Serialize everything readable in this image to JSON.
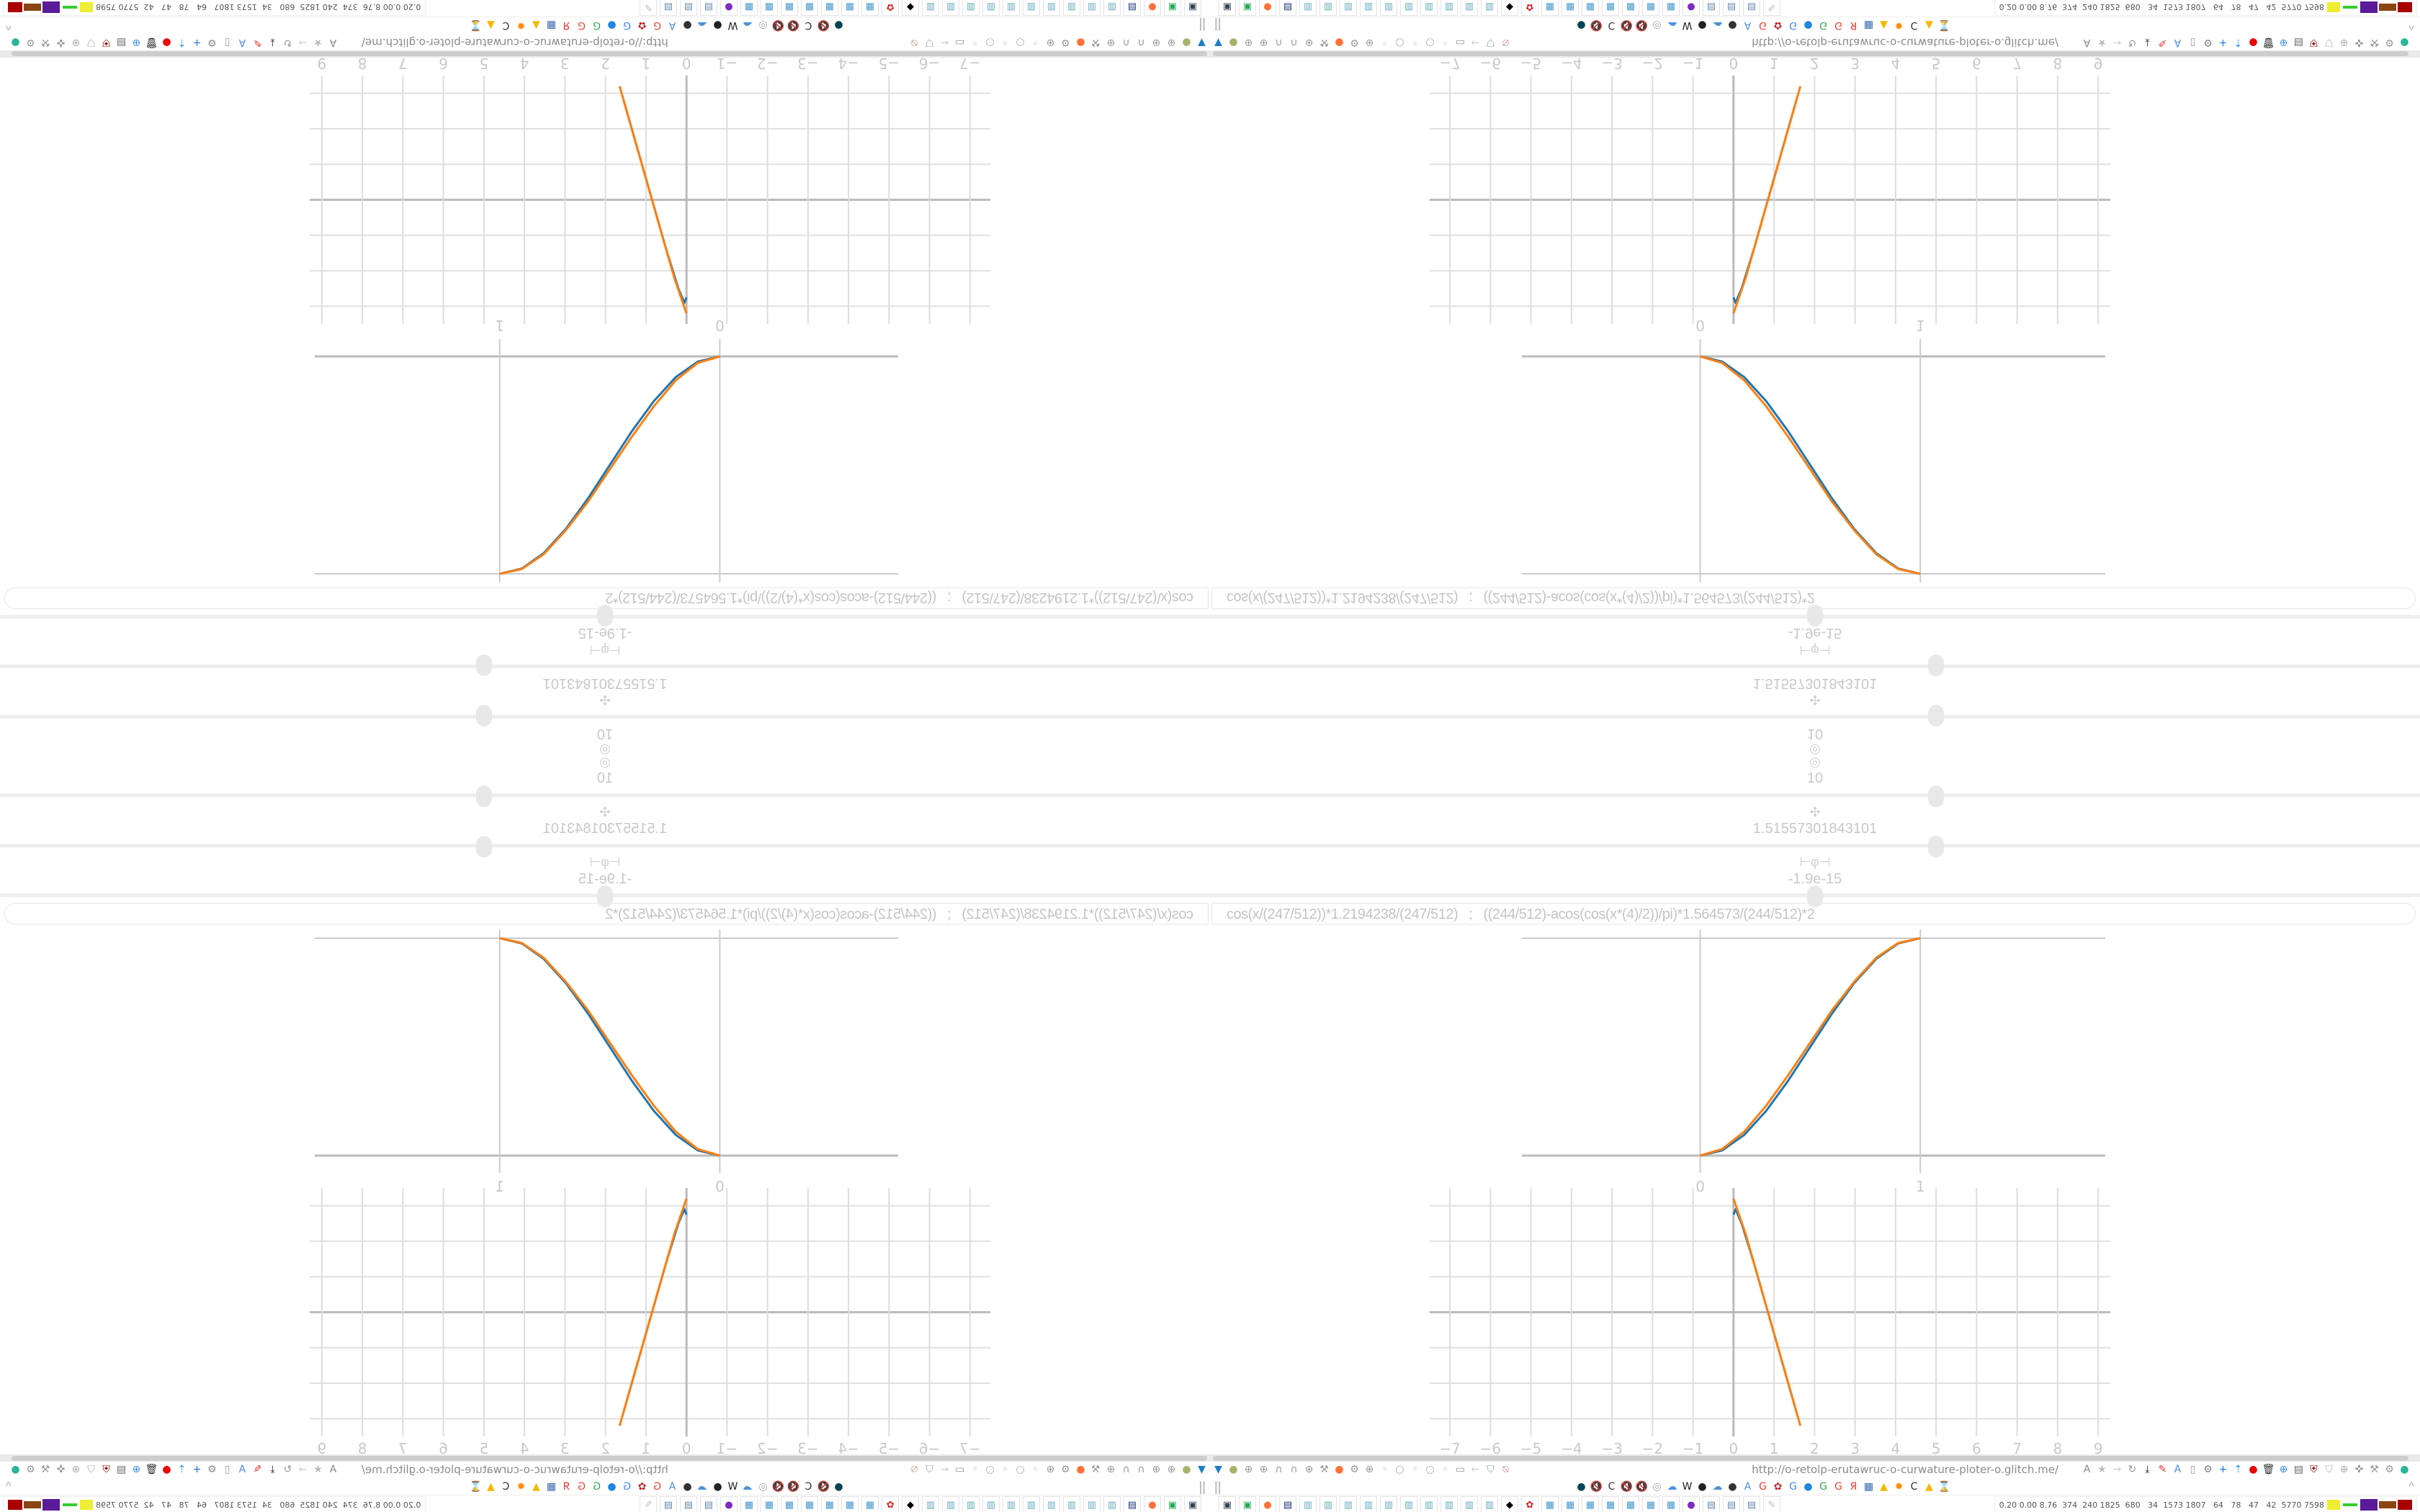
{
  "browser": {
    "url": "http://o-retolp-erutawruc-o-curwature-ploter-o.glitch.me/",
    "pause_label": "||",
    "collapse_label": "^",
    "system_stats": "0.20 0.00 8.76  374  240 1825  680   34  1573 1807   64   78   47   42  5770 7598"
  },
  "controls": {
    "top_value": "10",
    "top_icon": "target-icon",
    "slider1": {
      "icon": "move-icon",
      "value": "1.51557301843101",
      "position": 0.6
    },
    "slider2": {
      "icon": "phi-icon",
      "value": "-1.9e-15",
      "position": 0.5
    },
    "slider0": {
      "position": 0.6
    },
    "formula": "cos(x/(247/512))*1.2194238/(247/512)   ;   ((244/512)-acos(cos(x*(4)/2))/pi)*1.564573/(244/512)*2"
  },
  "colors": {
    "series_blue": "#1f77b4",
    "series_orange": "#ff7f0e",
    "grid": "#cccccc",
    "label": "#c8c8c8"
  },
  "chart_data": [
    {
      "type": "line",
      "x_tick_labels": [
        "0",
        "1"
      ],
      "xlim": [
        -0.81,
        1.84
      ],
      "ylim": [
        0,
        1
      ],
      "grid": true,
      "series": [
        {
          "color": "#1f77b4",
          "x": [
            0,
            0.1,
            0.2,
            0.3,
            0.4,
            0.5,
            0.6,
            0.7,
            0.8,
            0.9,
            1
          ],
          "y": [
            0,
            0.024,
            0.095,
            0.206,
            0.345,
            0.5,
            0.655,
            0.794,
            0.905,
            0.976,
            1
          ]
        },
        {
          "color": "#ff7f0e",
          "x": [
            0,
            0.1,
            0.2,
            0.3,
            0.4,
            0.5,
            0.6,
            0.7,
            0.8,
            0.9,
            1
          ],
          "y": [
            0,
            0.03,
            0.11,
            0.23,
            0.37,
            0.52,
            0.67,
            0.8,
            0.91,
            0.978,
            1
          ]
        }
      ]
    },
    {
      "type": "line",
      "x_tick_labels": [
        "−7",
        "−6",
        "−5",
        "−4",
        "−3",
        "−2",
        "−1",
        "0",
        "1",
        "2",
        "3",
        "4",
        "5",
        "6",
        "7",
        "8",
        "9"
      ],
      "xlim": [
        -7.5,
        9.3
      ],
      "ylim": [
        -3.5,
        3.5
      ],
      "grid": true,
      "series": [
        {
          "color": "#1f77b4",
          "x": [
            0.0,
            0.05,
            0.2,
            0.5,
            0.8,
            1.1,
            1.4,
            1.55
          ],
          "y": [
            2.75,
            2.9,
            2.5,
            1.4,
            0.2,
            -1.0,
            -2.2,
            -2.8
          ]
        },
        {
          "color": "#ff7f0e",
          "x": [
            0.0,
            0.3,
            0.6,
            0.9,
            1.2,
            1.5,
            1.65
          ],
          "y": [
            3.2,
            2.2,
            1.0,
            -0.2,
            -1.4,
            -2.6,
            -3.2
          ]
        }
      ]
    }
  ],
  "toolbar": {
    "row1_left": [
      {
        "name": "filter-icon",
        "g": "▼",
        "c": "#1a7fc1"
      },
      {
        "name": "extension-green-icon",
        "g": "●",
        "c": "#a7b26b"
      },
      {
        "name": "globe-icon",
        "g": "⊕",
        "c": "#999"
      },
      {
        "name": "globe-icon",
        "g": "⊕",
        "c": "#999"
      },
      {
        "name": "headphones-icon",
        "g": "∩",
        "c": "#999"
      },
      {
        "name": "headphones-icon",
        "g": "∩",
        "c": "#999"
      },
      {
        "name": "globe-icon",
        "g": "⊕",
        "c": "#999"
      },
      {
        "name": "wrench-icon",
        "g": "⚒",
        "c": "#999"
      },
      {
        "name": "firefox-icon",
        "g": "●",
        "c": "#ff7139"
      },
      {
        "name": "gear-icon",
        "g": "⚙",
        "c": "#999"
      },
      {
        "name": "globe-icon",
        "g": "⊕",
        "c": "#999"
      },
      {
        "name": "dot-icon",
        "g": "◦",
        "c": "#aaa"
      },
      {
        "name": "circle-icon",
        "g": "○",
        "c": "#aaa"
      },
      {
        "name": "dot-icon",
        "g": "◦",
        "c": "#aaa"
      },
      {
        "name": "circle-icon",
        "g": "○",
        "c": "#aaa"
      },
      {
        "name": "dot-icon",
        "g": "◦",
        "c": "#aaa"
      },
      {
        "name": "folder-icon",
        "g": "▭",
        "c": "#999"
      },
      {
        "name": "back-icon",
        "g": "←",
        "c": "#ccc"
      },
      {
        "name": "shield-icon",
        "g": "⛉",
        "c": "#999"
      },
      {
        "name": "user-blocked-icon",
        "g": "⍉",
        "c": "#c77"
      }
    ],
    "row1_right": [
      {
        "name": "translate-icon",
        "g": "A",
        "c": "#888"
      },
      {
        "name": "star-icon",
        "g": "★",
        "c": "#bbb"
      },
      {
        "name": "forward-icon",
        "g": "→",
        "c": "#ccc"
      },
      {
        "name": "reload-icon",
        "g": "↻",
        "c": "#999"
      },
      {
        "name": "download-icon",
        "g": "⤓",
        "c": "#222"
      },
      {
        "name": "pen-icon",
        "g": "✎",
        "c": "#d33"
      },
      {
        "name": "translate-icon",
        "g": "A",
        "c": "#4a8fe0"
      },
      {
        "name": "mouse-icon",
        "g": "▯",
        "c": "#999"
      },
      {
        "name": "gear-icon",
        "g": "⚙",
        "c": "#888"
      },
      {
        "name": "plus-icon",
        "g": "+",
        "c": "#1a73e8"
      },
      {
        "name": "upload-icon",
        "g": "⇡",
        "c": "#2b9fe0"
      },
      {
        "name": "record-icon",
        "g": "●",
        "c": "#e00"
      },
      {
        "name": "trash-icon",
        "g": "🗑",
        "c": "#333"
      },
      {
        "name": "globe-icon",
        "g": "⊕",
        "c": "#3b8de0"
      },
      {
        "name": "archive-icon",
        "g": "▤",
        "c": "#666"
      },
      {
        "name": "ublock-icon",
        "g": "⛨",
        "c": "#800"
      },
      {
        "name": "shield-icon",
        "g": "⛉",
        "c": "#aab"
      },
      {
        "name": "globe-icon",
        "g": "⊕",
        "c": "#aaa"
      },
      {
        "name": "puzzle-icon",
        "g": "✜",
        "c": "#999"
      },
      {
        "name": "wrench-icon",
        "g": "⚒",
        "c": "#999"
      },
      {
        "name": "settings-icon",
        "g": "⚙",
        "c": "#999"
      },
      {
        "name": "status-dot-icon",
        "g": "●",
        "c": "#2bb59a"
      }
    ],
    "row2": [
      {
        "name": "camera-icon",
        "g": "●",
        "c": "#045"
      },
      {
        "name": "mute-icon",
        "g": "🔇",
        "c": "#aaa"
      },
      {
        "name": "cc-icon",
        "g": "C",
        "c": "#333"
      },
      {
        "name": "mute-icon",
        "g": "🔇",
        "c": "#aaa"
      },
      {
        "name": "mute-icon",
        "g": "🔇",
        "c": "#aaa"
      },
      {
        "name": "mute-icon",
        "g": "◎",
        "c": "#aaa"
      },
      {
        "name": "cloud-icon",
        "g": "☁",
        "c": "#4a90d9"
      },
      {
        "name": "wikipedia-icon",
        "g": "W",
        "c": "#222"
      },
      {
        "name": "wave-icon",
        "g": "●",
        "c": "#222"
      },
      {
        "name": "cloud-icon",
        "g": "☁",
        "c": "#4a90d9"
      },
      {
        "name": "archive-icon",
        "g": "●",
        "c": "#333"
      },
      {
        "name": "translate-icon",
        "g": "A",
        "c": "#4a8fe0"
      },
      {
        "name": "google-icon",
        "g": "G",
        "c": "#ea4335"
      },
      {
        "name": "flower-icon",
        "g": "✿",
        "c": "#c0282d"
      },
      {
        "name": "google-icon",
        "g": "G",
        "c": "#4285f4"
      },
      {
        "name": "drop-icon",
        "g": "●",
        "c": "#1e88e5"
      },
      {
        "name": "google-icon",
        "g": "G",
        "c": "#34a853"
      },
      {
        "name": "google-icon",
        "g": "G",
        "c": "#ea4335"
      },
      {
        "name": "yandex-icon",
        "g": "Я",
        "c": "#f33"
      },
      {
        "name": "grid-icon",
        "g": "▦",
        "c": "#3566b0"
      },
      {
        "name": "image-icon",
        "g": "▲",
        "c": "#f5b800"
      },
      {
        "name": "sun-icon",
        "g": "✹",
        "c": "#f80"
      },
      {
        "name": "cc-icon",
        "g": "C",
        "c": "#333"
      },
      {
        "name": "image-icon",
        "g": "▲",
        "c": "#f5b800"
      },
      {
        "name": "hourglass-icon",
        "g": "⌛",
        "c": "#aaa"
      }
    ],
    "taskbar": [
      {
        "name": "monitor-icon",
        "g": "▣",
        "c": "#345"
      },
      {
        "name": "terminal-icon",
        "g": "▣",
        "c": "#2a5"
      },
      {
        "name": "firefox-icon",
        "g": "●",
        "c": "#ff7139"
      },
      {
        "name": "floppy-icon",
        "g": "▤",
        "c": "#237"
      },
      {
        "name": "notepad-icon",
        "g": "▥",
        "c": "#6ab"
      },
      {
        "name": "notepad-icon",
        "g": "▥",
        "c": "#6ab"
      },
      {
        "name": "notepad-icon",
        "g": "▥",
        "c": "#6ab"
      },
      {
        "name": "notepad-icon",
        "g": "▥",
        "c": "#6ab"
      },
      {
        "name": "notepad-icon",
        "g": "▥",
        "c": "#6ab"
      },
      {
        "name": "notepad-icon",
        "g": "▥",
        "c": "#6ab"
      },
      {
        "name": "notepad-icon",
        "g": "▥",
        "c": "#6ab"
      },
      {
        "name": "notepad-icon",
        "g": "▥",
        "c": "#6ab"
      },
      {
        "name": "notepad-icon",
        "g": "▥",
        "c": "#6ab"
      },
      {
        "name": "notepad-icon",
        "g": "▥",
        "c": "#6ab"
      },
      {
        "name": "inkscape-icon",
        "g": "◆",
        "c": "#000"
      },
      {
        "name": "gear-red-icon",
        "g": "✿",
        "c": "#d22"
      },
      {
        "name": "calculator-icon",
        "g": "▦",
        "c": "#49c"
      },
      {
        "name": "calculator-icon",
        "g": "▦",
        "c": "#49c"
      },
      {
        "name": "calculator-icon",
        "g": "▦",
        "c": "#49c"
      },
      {
        "name": "calculator-icon",
        "g": "▦",
        "c": "#49c"
      },
      {
        "name": "calculator-icon",
        "g": "▦",
        "c": "#49c"
      },
      {
        "name": "calculator-icon",
        "g": "▦",
        "c": "#49c"
      },
      {
        "name": "calculator-icon",
        "g": "▦",
        "c": "#49c"
      },
      {
        "name": "tor-icon",
        "g": "●",
        "c": "#7d2bc0"
      },
      {
        "name": "scroll-icon",
        "g": "▤",
        "c": "#68a"
      },
      {
        "name": "scroll-icon",
        "g": "▤",
        "c": "#68a"
      },
      {
        "name": "scroll-icon",
        "g": "▤",
        "c": "#68a"
      },
      {
        "name": "paint-icon",
        "g": "✎",
        "c": "#bbb"
      }
    ]
  }
}
